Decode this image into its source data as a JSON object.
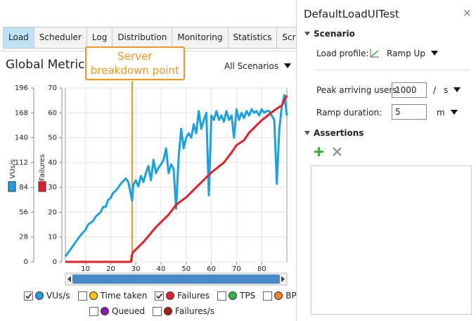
{
  "tabs": [
    "Load",
    "Scheduler",
    "Log",
    "Distribution",
    "Monitoring",
    "Statistics",
    "Scripts"
  ],
  "panel_title": "Global Metrics",
  "scenario_filter": "All Scenarios",
  "chart_data": {
    "type": "line",
    "ylabel": "VUs/s",
    "y2label": "Failures",
    "xlim": [
      2,
      90
    ],
    "xticks": [
      10,
      20,
      30,
      40,
      50,
      60,
      70,
      80
    ],
    "ylim": [
      0,
      196
    ],
    "yticks": [
      0,
      28,
      56,
      84,
      112,
      140,
      168,
      196
    ],
    "y2lim": [
      0,
      70
    ],
    "y2ticks": [
      0,
      10,
      20,
      30,
      40,
      50,
      60,
      70
    ],
    "grid": true,
    "series": [
      {
        "name": "VUs/s",
        "color": "#1ba1e2",
        "checked": true,
        "x": [
          2,
          4,
          6,
          8,
          10,
          11,
          13,
          14,
          16,
          17,
          18,
          19,
          20,
          21,
          22,
          24,
          25,
          26,
          27,
          28.5,
          29,
          30,
          31,
          32,
          33,
          34,
          35,
          36,
          37,
          38,
          39,
          40,
          41,
          42,
          43,
          44,
          45,
          46,
          47,
          48,
          49,
          50,
          51,
          52,
          53,
          54,
          55,
          56,
          57,
          58,
          59,
          60,
          61,
          62,
          63,
          64,
          65,
          66,
          67,
          68,
          69,
          70,
          71,
          72,
          73,
          74,
          75,
          76,
          77,
          78,
          79,
          80,
          81,
          82,
          83,
          84,
          85,
          86,
          87,
          88,
          89,
          90
        ],
        "values": [
          6,
          14,
          22,
          30,
          36,
          42,
          46,
          51,
          56,
          62,
          62,
          70,
          72,
          78,
          80,
          88,
          91,
          94,
          90,
          69,
          87,
          92,
          85,
          97,
          90,
          100,
          108,
          92,
          115,
          100,
          106,
          110,
          115,
          128,
          100,
          110,
          105,
          60,
          118,
          150,
          128,
          140,
          145,
          140,
          155,
          145,
          170,
          150,
          160,
          168,
          75,
          165,
          160,
          170,
          160,
          165,
          158,
          170,
          160,
          165,
          140,
          172,
          160,
          168,
          162,
          170,
          165,
          172,
          168,
          170,
          165,
          172,
          168,
          170,
          170,
          165,
          160,
          88,
          150,
          175,
          188,
          165
        ]
      },
      {
        "name": "Time taken",
        "color": "#ffc20e",
        "checked": false
      },
      {
        "name": "Failures",
        "color": "#e2202a",
        "checked": true,
        "axis": "y2",
        "x": [
          2,
          28,
          28.5,
          29,
          33,
          38,
          43,
          46,
          50,
          55,
          60,
          65,
          68,
          70,
          73,
          75,
          80,
          85,
          88,
          90
        ],
        "values": [
          0,
          0,
          3,
          4,
          8,
          14,
          19,
          23,
          26,
          31,
          36,
          40,
          44,
          47,
          49,
          52,
          57,
          61,
          63,
          67
        ]
      },
      {
        "name": "TPS",
        "color": "#2db84a",
        "checked": false
      },
      {
        "name": "BPS",
        "color": "#f58220",
        "checked": false
      },
      {
        "name": "Queued",
        "color": "#8a1fa6",
        "checked": false
      },
      {
        "name": "Failures/s",
        "color": "#b01a1a",
        "checked": false
      }
    ],
    "annotations": [
      {
        "text": "Server breakdown point",
        "x": 28.5,
        "color": "#f7931e"
      }
    ]
  },
  "sidebar": {
    "title": "DefaultLoadUITest",
    "scenario_heading": "Scenario",
    "load_profile_label": "Load profile:",
    "load_profile": "Ramp Up",
    "peak_label": "Peak arriving users:",
    "peak_value": "1000",
    "peak_separator": "/",
    "peak_unit": "s",
    "ramp_label": "Ramp duration:",
    "ramp_value": "5",
    "ramp_unit": "m",
    "assertions_heading": "Assertions"
  }
}
